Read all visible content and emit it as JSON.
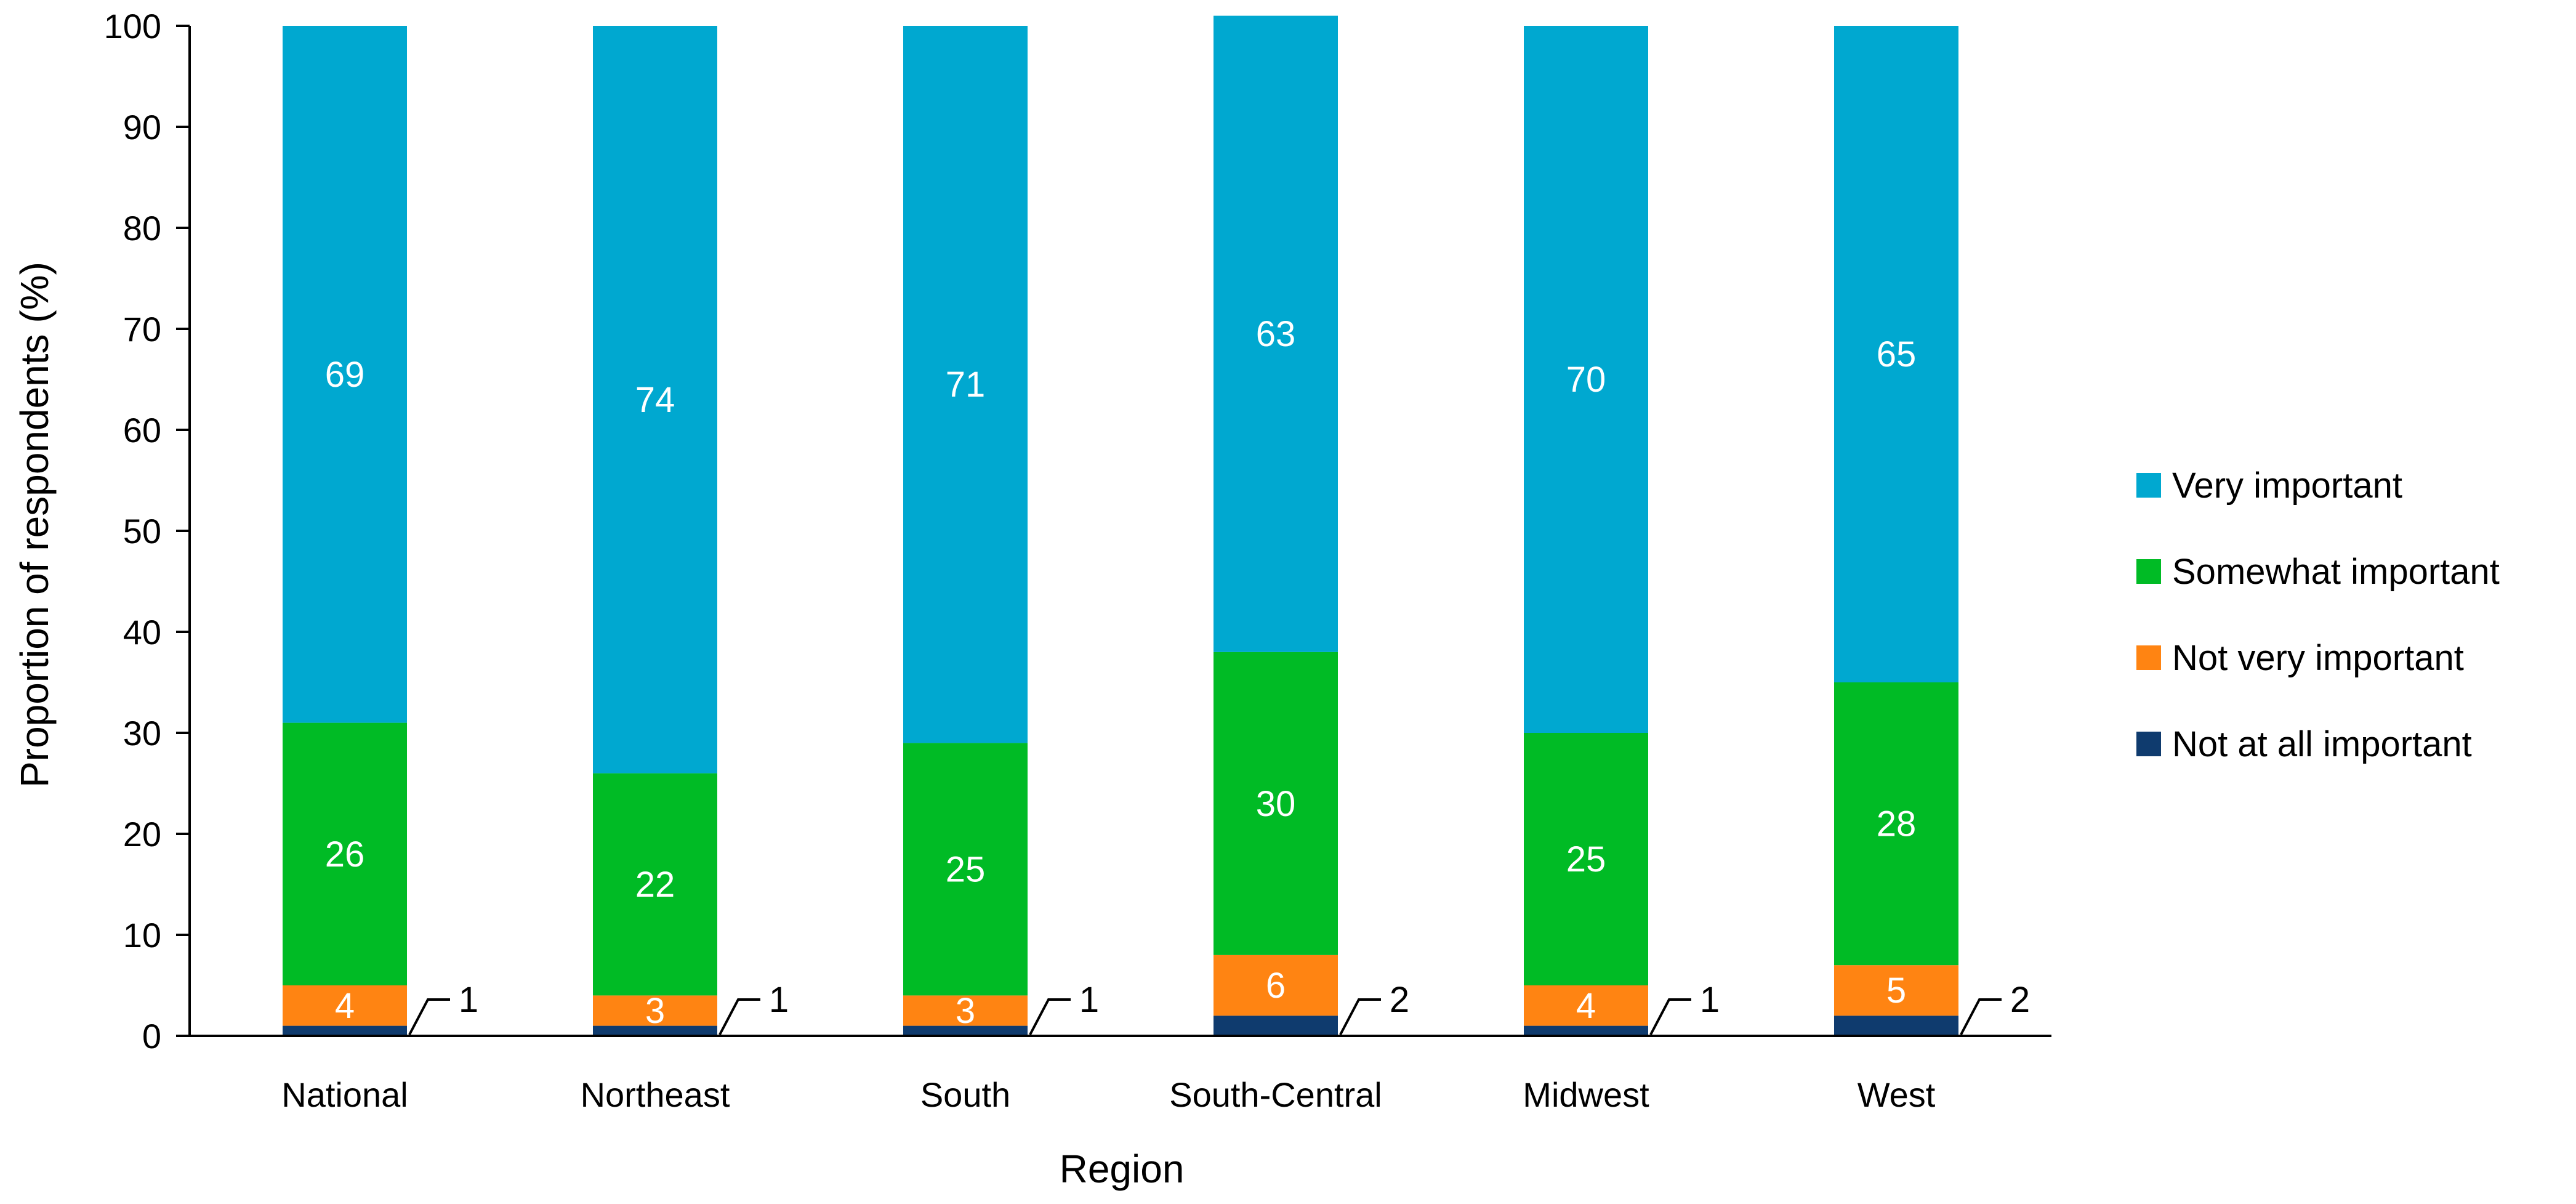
{
  "chart_data": {
    "type": "bar",
    "stacked": true,
    "title": "",
    "xlabel": "Region",
    "ylabel": "Proportion of respondents (%)",
    "ylim": [
      0,
      100
    ],
    "yticks": [
      0,
      10,
      20,
      30,
      40,
      50,
      60,
      70,
      80,
      90,
      100
    ],
    "grid": false,
    "legend_position": "right",
    "categories": [
      "National",
      "Northeast",
      "South",
      "South-Central",
      "Midwest",
      "West"
    ],
    "series": [
      {
        "name": "Not at all important",
        "color": "#0f3b6e",
        "values": [
          1,
          1,
          1,
          2,
          1,
          2
        ],
        "labels": [
          "1",
          "1",
          "1",
          "2",
          "1",
          "2"
        ]
      },
      {
        "name": "Not very important",
        "color": "#ff8412",
        "values": [
          4,
          3,
          3,
          6,
          4,
          5
        ],
        "labels": [
          "4",
          "3",
          "3",
          "6",
          "4",
          "5"
        ]
      },
      {
        "name": "Somewhat important",
        "color": "#00bb25",
        "values": [
          26,
          22,
          25,
          30,
          25,
          28
        ],
        "labels": [
          "26",
          "22",
          "25",
          "30",
          "25",
          "28"
        ]
      },
      {
        "name": "Very important",
        "color": "#00a8d0",
        "values": [
          69,
          74,
          71,
          63,
          70,
          65
        ],
        "labels": [
          "69",
          "74",
          "71",
          "63",
          "70",
          "65"
        ]
      }
    ],
    "legend_order": [
      "Very important",
      "Somewhat important",
      "Not very important",
      "Not at all important"
    ]
  }
}
